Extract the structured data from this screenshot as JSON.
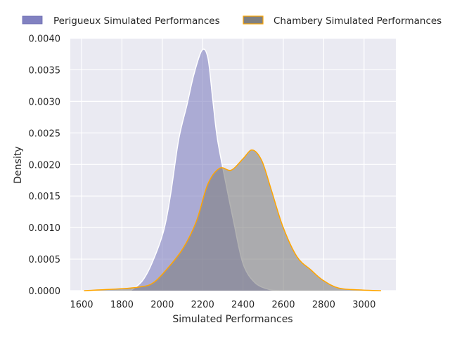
{
  "chart_data": {
    "type": "area",
    "title": "",
    "xlabel": "Simulated Performances",
    "ylabel": "Density",
    "xlim": [
      1540,
      3160
    ],
    "ylim": [
      0,
      0.004
    ],
    "xticks": [
      "1600",
      "1800",
      "2000",
      "2200",
      "2400",
      "2600",
      "2800",
      "3000"
    ],
    "xtick_values": [
      1600,
      1800,
      2000,
      2200,
      2400,
      2600,
      2800,
      3000
    ],
    "yticks": [
      "0.0000",
      "0.0005",
      "0.0010",
      "0.0015",
      "0.0020",
      "0.0025",
      "0.0030",
      "0.0035",
      "0.0040"
    ],
    "ytick_values": [
      0,
      0.0005,
      0.001,
      0.0015,
      0.002,
      0.0025,
      0.003,
      0.0035,
      0.004
    ],
    "grid": true,
    "legend_placement": "top, outside plot",
    "series": [
      {
        "name": "Perigueux Simulated Performances",
        "fill": "#8080c0",
        "edge": "#ffffff",
        "x": [
          1843,
          1900,
          1948,
          2006,
          2040,
          2081,
          2122,
          2157,
          2197,
          2226,
          2249,
          2272,
          2307,
          2354,
          2400,
          2458,
          2528,
          2580
        ],
        "y": [
          0,
          0.00015,
          0.00043,
          0.00094,
          0.0015,
          0.00239,
          0.00294,
          0.00343,
          0.00381,
          0.00369,
          0.00306,
          0.00243,
          0.00183,
          0.00109,
          0.00043,
          0.00013,
          2e-05,
          0
        ]
      },
      {
        "name": "Chambery Simulated Performances",
        "fill": "#808080",
        "edge": "#ffa500",
        "x": [
          1612,
          1797,
          1890,
          1948,
          2006,
          2099,
          2168,
          2226,
          2284,
          2342,
          2400,
          2446,
          2493,
          2539,
          2597,
          2667,
          2736,
          2794,
          2875,
          2991,
          3084
        ],
        "y": [
          0,
          3e-05,
          6e-05,
          0.00011,
          0.00028,
          0.00065,
          0.00109,
          0.00169,
          0.00194,
          0.00191,
          0.00209,
          0.00223,
          0.00206,
          0.00161,
          0.00102,
          0.00054,
          0.00033,
          0.00017,
          4e-05,
          1e-05,
          0
        ]
      }
    ]
  }
}
